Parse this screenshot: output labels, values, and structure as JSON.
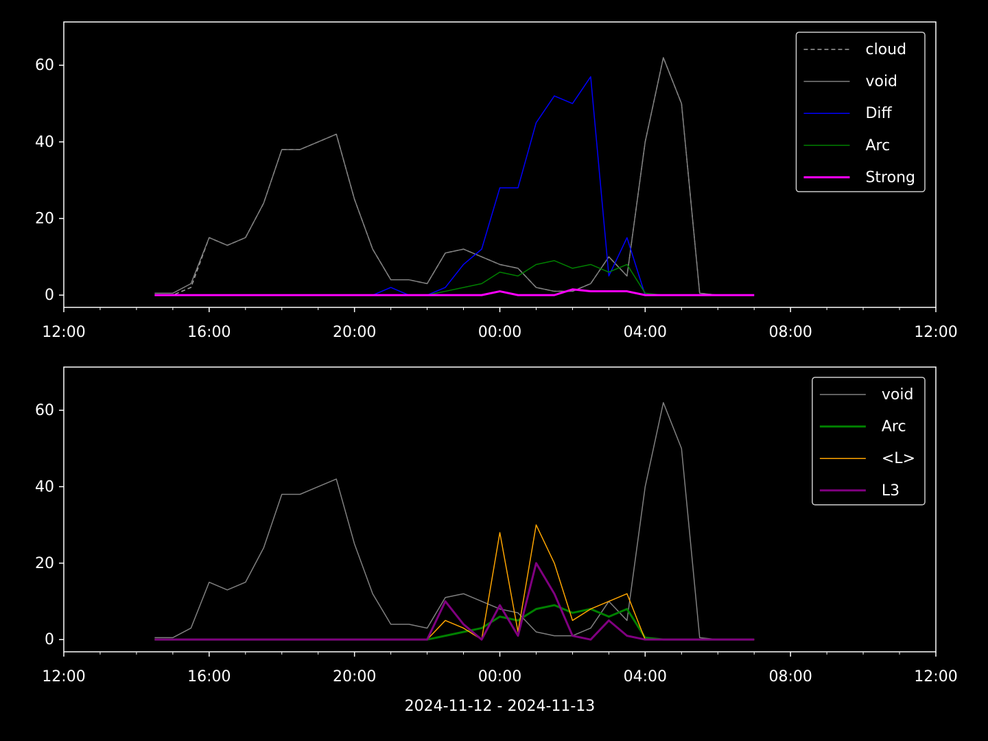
{
  "chart_data": [
    {
      "type": "line",
      "x": [
        2.5,
        3,
        3.5,
        4,
        4.5,
        5,
        5.5,
        6,
        6.5,
        7,
        7.5,
        8,
        8.5,
        9,
        9.5,
        10,
        10.5,
        11,
        11.5,
        12,
        12.5,
        13,
        13.5,
        14,
        14.5,
        15,
        15.5,
        16,
        16.5,
        17,
        17.5,
        18,
        18.5,
        19
      ],
      "xlim": [
        0,
        24
      ],
      "xticks": [
        {
          "value": 0,
          "label": "12:00"
        },
        {
          "value": 4,
          "label": "16:00"
        },
        {
          "value": 8,
          "label": "20:00"
        },
        {
          "value": 12,
          "label": "00:00"
        },
        {
          "value": 16,
          "label": "04:00"
        },
        {
          "value": 20,
          "label": "08:00"
        },
        {
          "value": 24,
          "label": "12:00"
        }
      ],
      "xminorticks": [
        1,
        2,
        3,
        5,
        6,
        7,
        9,
        10,
        11,
        13,
        14,
        15,
        17,
        18,
        19,
        21,
        22,
        23
      ],
      "ylim": [
        -3.2,
        71.3
      ],
      "yticks": [
        0,
        20,
        40,
        60
      ],
      "legend": "upper right",
      "series": [
        {
          "name": "cloud",
          "color": "#a0a0a0",
          "linestyle": "dashed",
          "linewidth": 1.5,
          "values": [
            0,
            0,
            2,
            15,
            13,
            15,
            24,
            38,
            38,
            40,
            42,
            25,
            12,
            4,
            4,
            3,
            11,
            12,
            10,
            8,
            7,
            2,
            1,
            1,
            3,
            10,
            5,
            40,
            62,
            50,
            0.5,
            0,
            0,
            0
          ]
        },
        {
          "name": "void",
          "color": "#808080",
          "linestyle": "solid",
          "linewidth": 1.5,
          "values": [
            0.5,
            0.5,
            3,
            15,
            13,
            15,
            24,
            38,
            38,
            40,
            42,
            25,
            12,
            4,
            4,
            3,
            11,
            12,
            10,
            8,
            7,
            2,
            1,
            1,
            3,
            10,
            5,
            40,
            62,
            50,
            0.5,
            0,
            0,
            0
          ]
        },
        {
          "name": "Diff",
          "color": "#0000ff",
          "linestyle": "solid",
          "linewidth": 1.5,
          "values": [
            0,
            0,
            0,
            0,
            0,
            0,
            0,
            0,
            0,
            0,
            0,
            0,
            0,
            2,
            0,
            0,
            2,
            8,
            12,
            28,
            28,
            45,
            52,
            50,
            57,
            5,
            15,
            0,
            0,
            0,
            0,
            0,
            0,
            0
          ]
        },
        {
          "name": "Arc",
          "color": "#008000",
          "linestyle": "solid",
          "linewidth": 1.5,
          "values": [
            0,
            0,
            0,
            0,
            0,
            0,
            0,
            0,
            0,
            0,
            0,
            0,
            0,
            0,
            0,
            0,
            1,
            2,
            3,
            6,
            5,
            8,
            9,
            7,
            8,
            6,
            8,
            0.5,
            0,
            0,
            0,
            0,
            0,
            0
          ]
        },
        {
          "name": "Strong",
          "color": "#ff00ff",
          "linestyle": "solid",
          "linewidth": 3,
          "values": [
            0,
            0,
            0,
            0,
            0,
            0,
            0,
            0,
            0,
            0,
            0,
            0,
            0,
            0,
            0,
            0,
            0,
            0,
            0,
            1,
            0,
            0,
            0,
            1.5,
            1,
            1,
            1,
            0,
            0,
            0,
            0,
            0,
            0,
            0
          ]
        }
      ]
    },
    {
      "type": "line",
      "xlabel": "2024-11-12 - 2024-11-13",
      "x": [
        2.5,
        3,
        3.5,
        4,
        4.5,
        5,
        5.5,
        6,
        6.5,
        7,
        7.5,
        8,
        8.5,
        9,
        9.5,
        10,
        10.5,
        11,
        11.5,
        12,
        12.5,
        13,
        13.5,
        14,
        14.5,
        15,
        15.5,
        16,
        16.5,
        17,
        17.5,
        18,
        18.5,
        19
      ],
      "xlim": [
        0,
        24
      ],
      "xticks": [
        {
          "value": 0,
          "label": "12:00"
        },
        {
          "value": 4,
          "label": "16:00"
        },
        {
          "value": 8,
          "label": "20:00"
        },
        {
          "value": 12,
          "label": "00:00"
        },
        {
          "value": 16,
          "label": "04:00"
        },
        {
          "value": 20,
          "label": "08:00"
        },
        {
          "value": 24,
          "label": "12:00"
        }
      ],
      "xminorticks": [
        1,
        2,
        3,
        5,
        6,
        7,
        9,
        10,
        11,
        13,
        14,
        15,
        17,
        18,
        19,
        21,
        22,
        23
      ],
      "ylim": [
        -3.2,
        71.3
      ],
      "yticks": [
        0,
        20,
        40,
        60
      ],
      "legend": "upper right",
      "series": [
        {
          "name": "void",
          "color": "#808080",
          "linestyle": "solid",
          "linewidth": 1.5,
          "values": [
            0.5,
            0.5,
            3,
            15,
            13,
            15,
            24,
            38,
            38,
            40,
            42,
            25,
            12,
            4,
            4,
            3,
            11,
            12,
            10,
            8,
            7,
            2,
            1,
            1,
            3,
            10,
            5,
            40,
            62,
            50,
            0.5,
            0,
            0,
            0
          ]
        },
        {
          "name": "Arc",
          "color": "#008000",
          "linestyle": "solid",
          "linewidth": 3,
          "values": [
            0,
            0,
            0,
            0,
            0,
            0,
            0,
            0,
            0,
            0,
            0,
            0,
            0,
            0,
            0,
            0,
            1,
            2,
            3,
            6,
            5,
            8,
            9,
            7,
            8,
            6,
            8,
            0.5,
            0,
            0,
            0,
            0,
            0,
            0
          ]
        },
        {
          "name": "<L>",
          "color": "#ffa500",
          "linestyle": "solid",
          "linewidth": 1.5,
          "values": [
            0,
            0,
            0,
            0,
            0,
            0,
            0,
            0,
            0,
            0,
            0,
            0,
            0,
            0,
            0,
            0,
            5,
            3,
            0,
            28,
            2,
            30,
            20,
            5,
            8,
            10,
            12,
            0,
            0,
            0,
            0,
            0,
            0,
            0
          ]
        },
        {
          "name": "L3",
          "color": "#800080",
          "linestyle": "solid",
          "linewidth": 3,
          "values": [
            0,
            0,
            0,
            0,
            0,
            0,
            0,
            0,
            0,
            0,
            0,
            0,
            0,
            0,
            0,
            0,
            10,
            4,
            0,
            9,
            1,
            20,
            12,
            1,
            0,
            5,
            1,
            0,
            0,
            0,
            0,
            0,
            0,
            0
          ]
        }
      ]
    }
  ]
}
